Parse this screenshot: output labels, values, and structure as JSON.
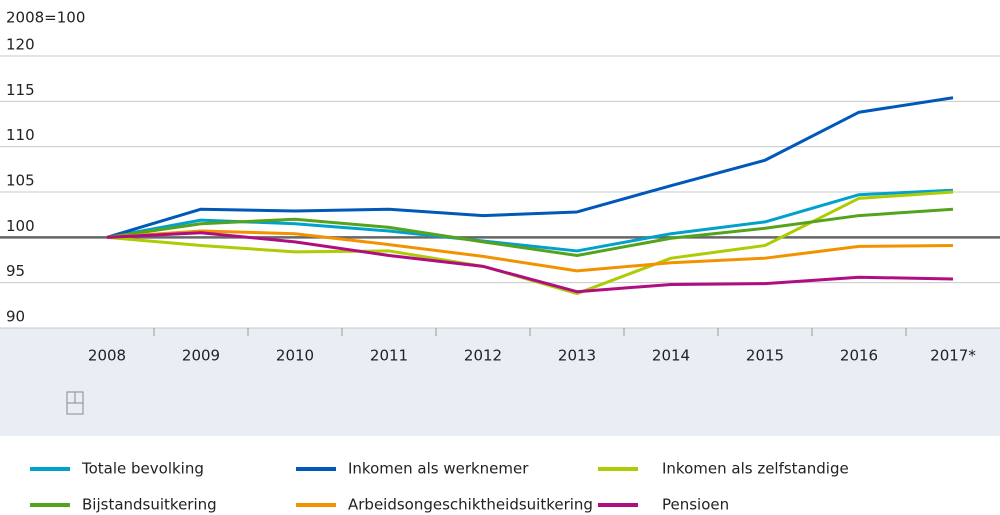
{
  "chart_data": {
    "type": "line",
    "y_label": "2008=100",
    "categories": [
      "2008",
      "2009",
      "2010",
      "2011",
      "2012",
      "2013",
      "2014",
      "2015",
      "2016",
      "2017*"
    ],
    "series": [
      {
        "name": "Totale bevolking",
        "color": "#00a1cd",
        "values": [
          100,
          101.9,
          101.5,
          100.7,
          99.6,
          98.5,
          100.4,
          101.7,
          104.7,
          105.2
        ]
      },
      {
        "name": "Inkomen als werknemer",
        "color": "#0058b8",
        "values": [
          100,
          103.1,
          102.9,
          103.1,
          102.4,
          102.8,
          105.7,
          108.5,
          113.8,
          115.4
        ]
      },
      {
        "name": "Inkomen als zelfstandige",
        "color": "#afcb05",
        "values": [
          100,
          99.1,
          98.4,
          98.5,
          96.8,
          93.8,
          97.7,
          99.1,
          104.3,
          105.0
        ]
      },
      {
        "name": "Bijstandsuitkering",
        "color": "#53a31d",
        "values": [
          100,
          101.5,
          102.0,
          101.1,
          99.5,
          98.0,
          99.9,
          101.0,
          102.4,
          103.1
        ]
      },
      {
        "name": "Arbeidsongeschiktheidsuitkering",
        "color": "#f39200",
        "values": [
          100,
          100.7,
          100.4,
          99.2,
          97.9,
          96.3,
          97.2,
          97.7,
          99.0,
          99.1
        ]
      },
      {
        "name": "Pensioen",
        "color": "#af0e80",
        "values": [
          100,
          100.5,
          99.5,
          98.0,
          96.8,
          94.0,
          94.8,
          94.9,
          95.6,
          95.4
        ]
      }
    ],
    "ylim": [
      90,
      120
    ],
    "yticks": [
      90,
      95,
      100,
      105,
      110,
      115,
      120
    ],
    "grid": true,
    "baseline": 100
  }
}
